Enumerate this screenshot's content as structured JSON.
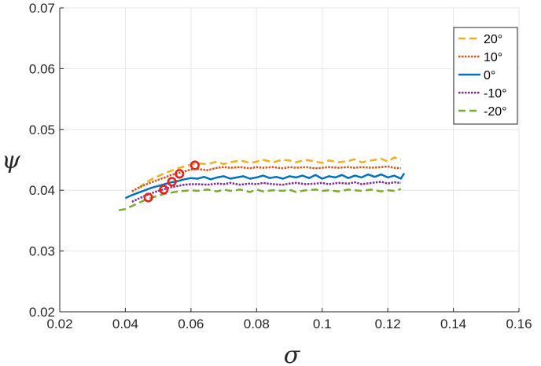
{
  "chart_data": {
    "type": "line",
    "xlabel": "σ",
    "ylabel": "ψ",
    "xlim": [
      0.02,
      0.16
    ],
    "ylim": [
      0.02,
      0.07
    ],
    "grid": true,
    "legend_position": "top-right",
    "x_ticks": [
      "0.02",
      "0.04",
      "0.06",
      "0.08",
      "0.1",
      "0.12",
      "0.14",
      "0.16"
    ],
    "y_ticks": [
      "0.02",
      "0.03",
      "0.04",
      "0.05",
      "0.06",
      "0.07"
    ],
    "series": [
      {
        "name": "20°",
        "color": "#EDB120",
        "dash": "dashed",
        "x": [
          0.044,
          0.046,
          0.048,
          0.05,
          0.052,
          0.054,
          0.056,
          0.058,
          0.06,
          0.062,
          0.065,
          0.068,
          0.07,
          0.072,
          0.075,
          0.078,
          0.08,
          0.082,
          0.085,
          0.088,
          0.09,
          0.092,
          0.095,
          0.098,
          0.1,
          0.102,
          0.105,
          0.108,
          0.11,
          0.112,
          0.115,
          0.118,
          0.12,
          0.122,
          0.124
        ],
        "y": [
          0.0403,
          0.0412,
          0.0418,
          0.0423,
          0.0428,
          0.0432,
          0.0436,
          0.0439,
          0.0442,
          0.0444,
          0.0443,
          0.0447,
          0.0443,
          0.0446,
          0.0449,
          0.0445,
          0.0447,
          0.045,
          0.0446,
          0.045,
          0.0449,
          0.0446,
          0.045,
          0.0447,
          0.0445,
          0.0449,
          0.0446,
          0.0448,
          0.0451,
          0.0446,
          0.0449,
          0.0452,
          0.0447,
          0.0454,
          0.045
        ]
      },
      {
        "name": "10°",
        "color": "#D95319",
        "dash": "dotted",
        "x": [
          0.042,
          0.044,
          0.046,
          0.048,
          0.05,
          0.052,
          0.054,
          0.056,
          0.058,
          0.06,
          0.062,
          0.065,
          0.068,
          0.07,
          0.072,
          0.075,
          0.078,
          0.08,
          0.082,
          0.085,
          0.088,
          0.09,
          0.092,
          0.095,
          0.098,
          0.1,
          0.102,
          0.105,
          0.108,
          0.11,
          0.112,
          0.115,
          0.118,
          0.12,
          0.122,
          0.124
        ],
        "y": [
          0.0398,
          0.0404,
          0.0409,
          0.0413,
          0.0417,
          0.0421,
          0.0425,
          0.0428,
          0.0431,
          0.0434,
          0.0435,
          0.0433,
          0.0437,
          0.0438,
          0.0437,
          0.0438,
          0.0436,
          0.0438,
          0.0437,
          0.0438,
          0.0436,
          0.0438,
          0.0437,
          0.0438,
          0.0436,
          0.0437,
          0.0438,
          0.0437,
          0.0438,
          0.0437,
          0.0438,
          0.0437,
          0.0438,
          0.0439,
          0.0437,
          0.0436
        ]
      },
      {
        "name": "0°",
        "color": "#0072BD",
        "dash": "solid",
        "x": [
          0.04,
          0.042,
          0.044,
          0.046,
          0.048,
          0.05,
          0.052,
          0.054,
          0.056,
          0.058,
          0.06,
          0.062,
          0.064,
          0.066,
          0.068,
          0.07,
          0.072,
          0.074,
          0.076,
          0.078,
          0.08,
          0.082,
          0.084,
          0.086,
          0.088,
          0.09,
          0.092,
          0.094,
          0.096,
          0.098,
          0.1,
          0.102,
          0.104,
          0.106,
          0.108,
          0.11,
          0.112,
          0.114,
          0.116,
          0.118,
          0.12,
          0.122,
          0.124,
          0.125
        ],
        "y": [
          0.0387,
          0.0392,
          0.0396,
          0.04,
          0.0404,
          0.0407,
          0.041,
          0.0413,
          0.0415,
          0.0418,
          0.042,
          0.0419,
          0.0422,
          0.0418,
          0.0421,
          0.0423,
          0.0419,
          0.0421,
          0.0423,
          0.0419,
          0.0421,
          0.0424,
          0.042,
          0.0422,
          0.0419,
          0.0423,
          0.0421,
          0.0424,
          0.042,
          0.0425,
          0.0419,
          0.0423,
          0.0421,
          0.0425,
          0.042,
          0.0424,
          0.0421,
          0.0426,
          0.0422,
          0.0426,
          0.0421,
          0.0424,
          0.0419,
          0.0428
        ]
      },
      {
        "name": "-10°",
        "color": "#7E2F8E",
        "dash": "dotted",
        "x": [
          0.042,
          0.044,
          0.046,
          0.048,
          0.05,
          0.052,
          0.054,
          0.056,
          0.058,
          0.06,
          0.062,
          0.065,
          0.068,
          0.07,
          0.072,
          0.075,
          0.078,
          0.08,
          0.082,
          0.085,
          0.088,
          0.09,
          0.092,
          0.095,
          0.098,
          0.1,
          0.102,
          0.105,
          0.108,
          0.11,
          0.112,
          0.115,
          0.118,
          0.12,
          0.122,
          0.124
        ],
        "y": [
          0.0381,
          0.0386,
          0.0391,
          0.0395,
          0.0399,
          0.0402,
          0.0405,
          0.0407,
          0.0409,
          0.041,
          0.041,
          0.0409,
          0.0411,
          0.041,
          0.0412,
          0.0409,
          0.0411,
          0.041,
          0.0412,
          0.041,
          0.0409,
          0.0411,
          0.0412,
          0.041,
          0.0411,
          0.0412,
          0.041,
          0.0412,
          0.0411,
          0.0413,
          0.041,
          0.0412,
          0.0414,
          0.0411,
          0.0413,
          0.0412
        ]
      },
      {
        "name": "-20°",
        "color": "#77AC30",
        "dash": "dashed",
        "x": [
          0.038,
          0.04,
          0.042,
          0.044,
          0.046,
          0.048,
          0.05,
          0.052,
          0.054,
          0.056,
          0.058,
          0.06,
          0.062,
          0.065,
          0.068,
          0.07,
          0.072,
          0.075,
          0.078,
          0.08,
          0.082,
          0.085,
          0.088,
          0.09,
          0.092,
          0.095,
          0.098,
          0.1,
          0.102,
          0.105,
          0.108,
          0.11,
          0.112,
          0.115,
          0.118,
          0.12,
          0.122,
          0.124
        ],
        "y": [
          0.0367,
          0.0369,
          0.0374,
          0.0379,
          0.0384,
          0.0388,
          0.0391,
          0.0394,
          0.0396,
          0.0398,
          0.0399,
          0.04,
          0.0399,
          0.0401,
          0.0398,
          0.0401,
          0.0399,
          0.0401,
          0.0397,
          0.0401,
          0.0398,
          0.04,
          0.0399,
          0.0401,
          0.0397,
          0.04,
          0.0401,
          0.0399,
          0.04,
          0.0398,
          0.0401,
          0.04,
          0.0399,
          0.0401,
          0.0398,
          0.04,
          0.0399,
          0.0402
        ]
      }
    ],
    "markers": {
      "color": "#E8221B",
      "shape": "circle",
      "points": [
        {
          "x": 0.047,
          "y": 0.0388
        },
        {
          "x": 0.0517,
          "y": 0.0401
        },
        {
          "x": 0.0542,
          "y": 0.0414
        },
        {
          "x": 0.0565,
          "y": 0.0427
        },
        {
          "x": 0.0612,
          "y": 0.0441
        }
      ]
    }
  }
}
